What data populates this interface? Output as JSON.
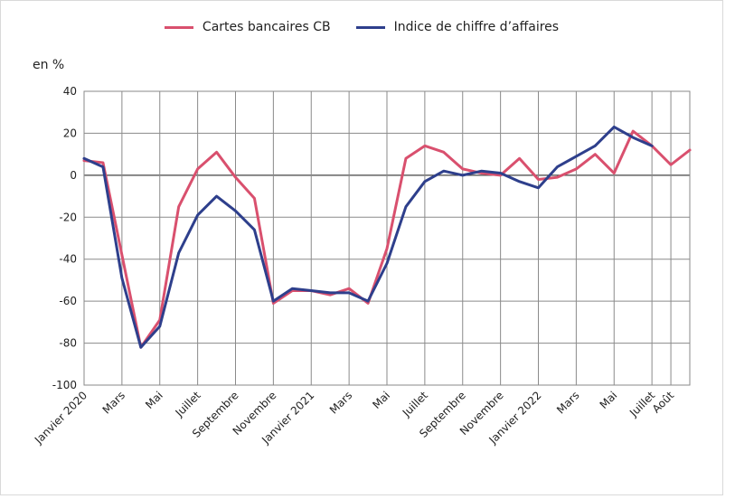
{
  "chart_data": {
    "type": "line",
    "ylabel": "en %",
    "ylim": [
      -100,
      40
    ],
    "yticks": [
      40,
      20,
      0,
      -20,
      -40,
      -60,
      -80,
      -100
    ],
    "grid": true,
    "legend_position": "top",
    "xtick_labels": [
      {
        "index": 0,
        "label": "Janvier 2020"
      },
      {
        "index": 2,
        "label": "Mars"
      },
      {
        "index": 4,
        "label": "Mai"
      },
      {
        "index": 6,
        "label": "Juillet"
      },
      {
        "index": 8,
        "label": "Septembre"
      },
      {
        "index": 10,
        "label": "Novembre"
      },
      {
        "index": 12,
        "label": "Janvier 2021"
      },
      {
        "index": 14,
        "label": "Mars"
      },
      {
        "index": 16,
        "label": "Mai"
      },
      {
        "index": 18,
        "label": "Juillet"
      },
      {
        "index": 20,
        "label": "Septembre"
      },
      {
        "index": 22,
        "label": "Novembre"
      },
      {
        "index": 24,
        "label": "Janvier 2022"
      },
      {
        "index": 26,
        "label": "Mars"
      },
      {
        "index": 28,
        "label": "Mai"
      },
      {
        "index": 30,
        "label": "Juillet"
      },
      {
        "index": 31,
        "label": "Août"
      }
    ],
    "series": [
      {
        "name": "Cartes bancaires CB",
        "color": "#d9506e",
        "values": [
          7,
          6,
          -38,
          -82,
          -69,
          -15,
          3,
          11,
          -1,
          -11,
          -61,
          -55,
          -55,
          -57,
          -54,
          -61,
          -35,
          8,
          14,
          11,
          3,
          1,
          0,
          8,
          -2,
          -1,
          3,
          10,
          1,
          21,
          14,
          5,
          12
        ]
      },
      {
        "name": "Indice de chiffre d’affaires",
        "color": "#2e3f8c",
        "values": [
          8,
          4,
          -49,
          -82,
          -72,
          -37,
          -19,
          -10,
          -17,
          -26,
          -60,
          -54,
          -55,
          -56,
          -56,
          -60,
          -42,
          -15,
          -3,
          2,
          0,
          2,
          1,
          -3,
          -6,
          4,
          9,
          14,
          23,
          18,
          14,
          null,
          null
        ]
      }
    ]
  }
}
